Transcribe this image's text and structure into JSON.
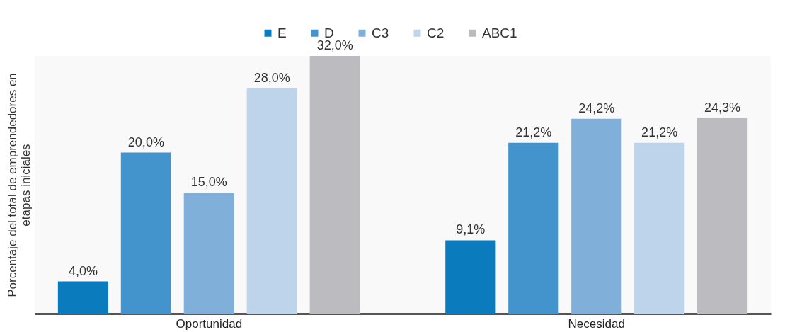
{
  "chart_data": {
    "type": "bar",
    "ylabel": "Porcentaje del total de emprendedores en\netapas iniciales",
    "categories": [
      "Oportunidad",
      "Necesidad"
    ],
    "series": [
      {
        "name": "E",
        "color": "#0a7bbd",
        "values": [
          4.0,
          9.1
        ],
        "value_labels": [
          "4,0%",
          "9,1%"
        ]
      },
      {
        "name": "D",
        "color": "#4394cc",
        "values": [
          20.0,
          21.2
        ],
        "value_labels": [
          "20,0%",
          "21,2%"
        ]
      },
      {
        "name": "C3",
        "color": "#80b0da",
        "values": [
          15.0,
          24.2
        ],
        "value_labels": [
          "15,0%",
          "24,2%"
        ]
      },
      {
        "name": "C2",
        "color": "#bdd4ea",
        "values": [
          28.0,
          21.2
        ],
        "value_labels": [
          "28,0%",
          "21,2%"
        ]
      },
      {
        "name": "ABC1",
        "color": "#bcbcc0",
        "values": [
          32.0,
          24.3
        ],
        "value_labels": [
          "32,0%",
          "24,3%"
        ]
      }
    ],
    "legend": "top",
    "grid": false
  }
}
